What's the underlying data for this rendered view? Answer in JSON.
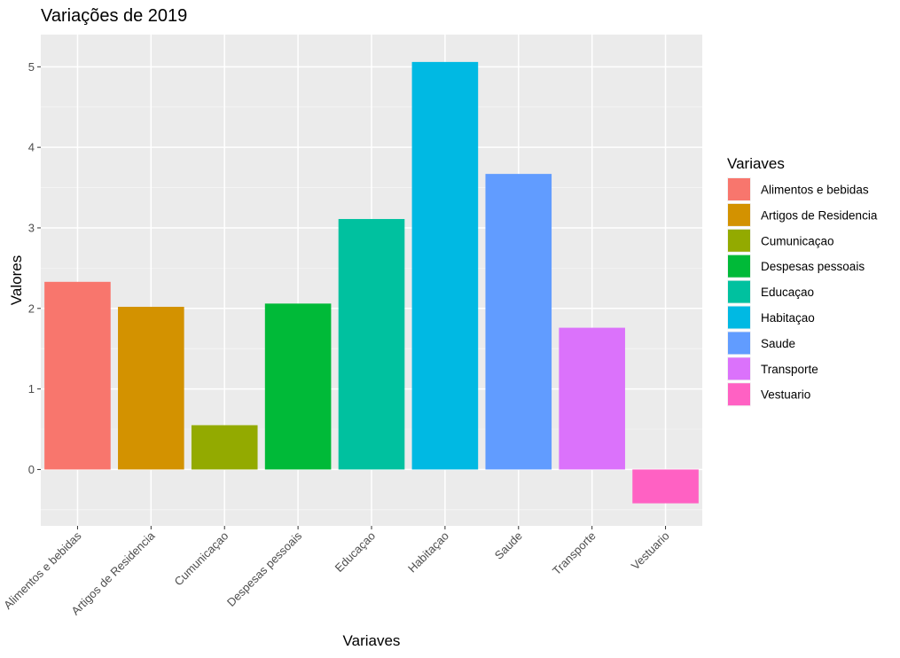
{
  "chart_data": {
    "type": "bar",
    "title": "Variações de 2019",
    "xlabel": "Variaves",
    "ylabel": "Valores",
    "categories": [
      "Alimentos e bebidas",
      "Artigos de Residencia",
      "Cumunicaçao",
      "Despesas pessoais",
      "Educaçao",
      "Habitaçao",
      "Saude",
      "Transporte",
      "Vestuario"
    ],
    "values": [
      2.33,
      2.02,
      0.55,
      2.06,
      3.11,
      5.06,
      3.67,
      1.76,
      -0.42
    ],
    "colors": [
      "#F8766D",
      "#D39200",
      "#93AA00",
      "#00BA38",
      "#00C19F",
      "#00B9E3",
      "#619CFF",
      "#DB72FB",
      "#FF61C3"
    ],
    "ylim": [
      -0.7,
      5.4
    ],
    "yticks": [
      0,
      1,
      2,
      3,
      4,
      5
    ],
    "grid": true,
    "legend": {
      "title": "Variaves",
      "position": "right",
      "entries": [
        "Alimentos e bebidas",
        "Artigos de Residencia",
        "Cumunicaçao",
        "Despesas pessoais",
        "Educaçao",
        "Habitaçao",
        "Saude",
        "Transporte",
        "Vestuario"
      ]
    }
  }
}
